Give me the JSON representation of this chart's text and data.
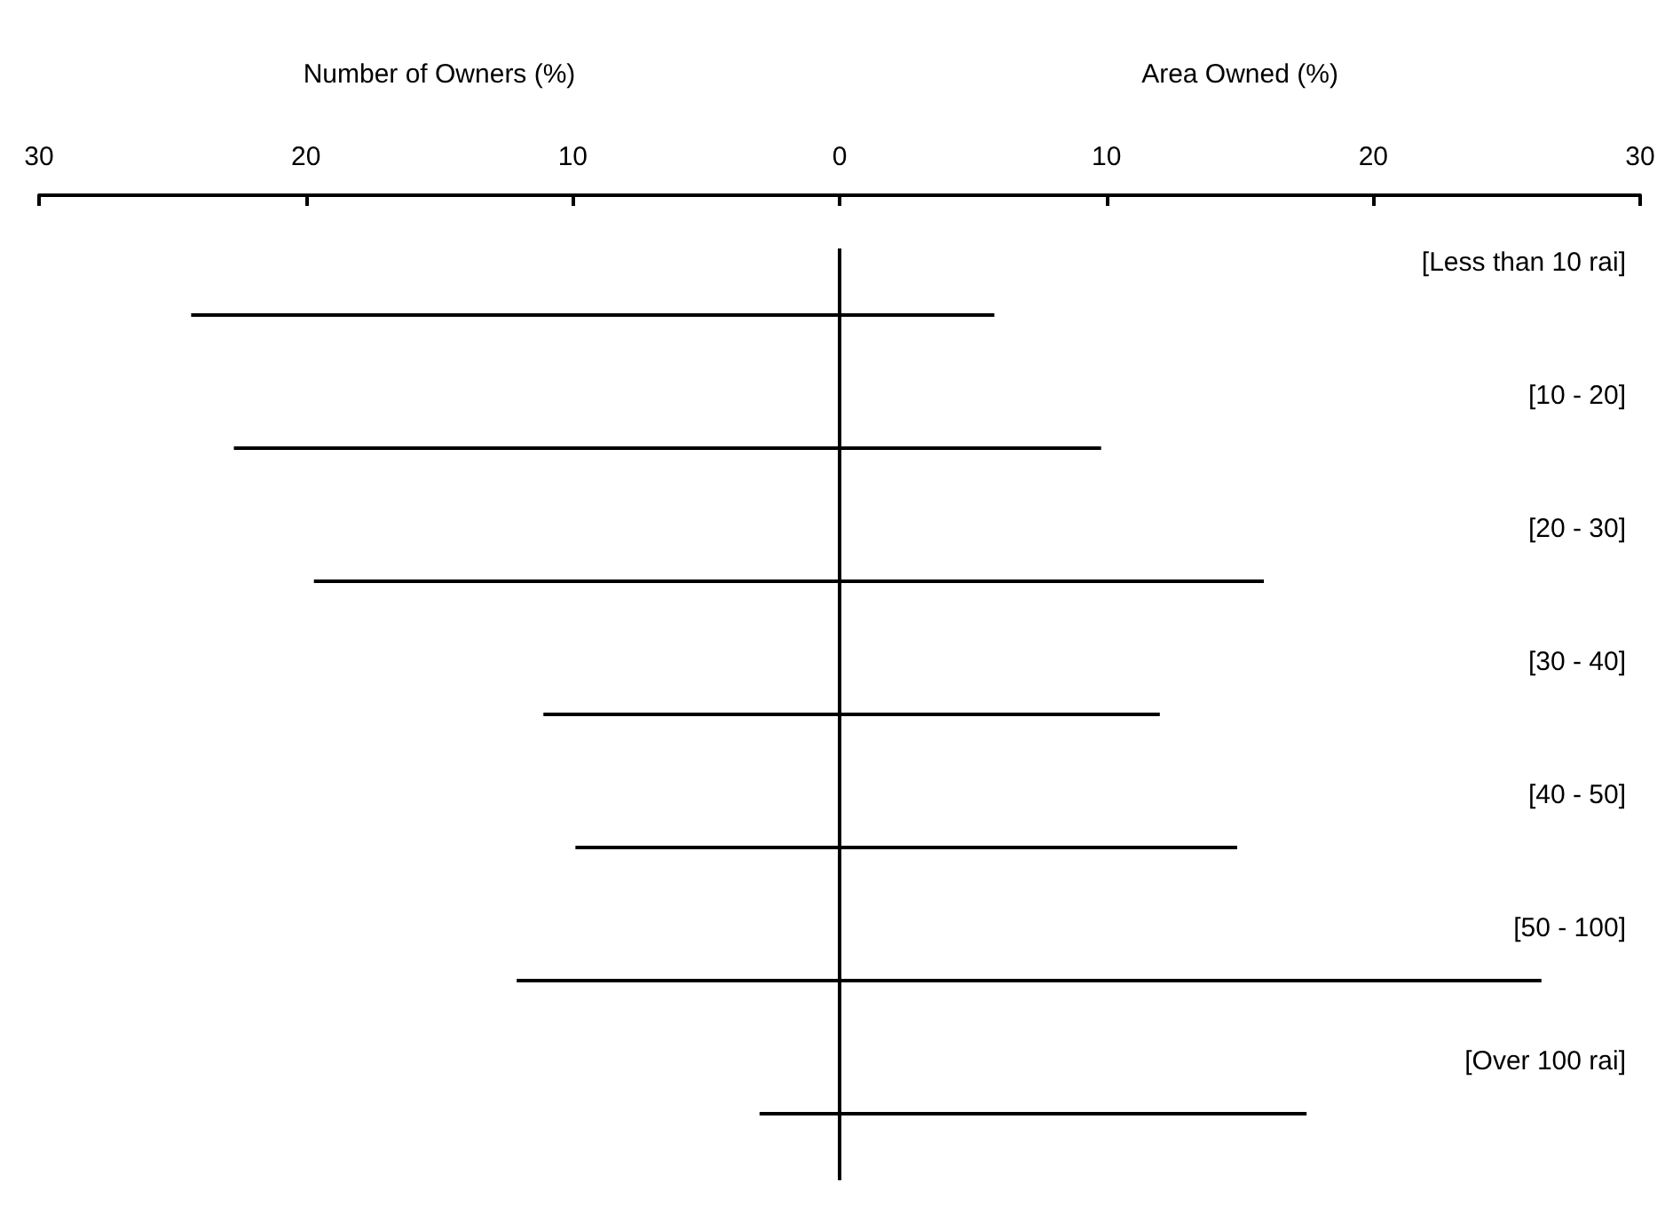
{
  "chart_data": {
    "type": "bar",
    "orientation": "horizontal",
    "stacked": true,
    "categories": [
      "[Less than 10 rai]",
      "[10 - 20]",
      "[20 - 30]",
      "[30 - 40]",
      "[40 - 50]",
      "[50 - 100]",
      "[Over 100 rai]"
    ],
    "series": [
      {
        "color": "#000000",
        "values": [
          -24.3,
          -22.7,
          -19.7,
          -11.1,
          -9.9,
          -12.1,
          -3.0
        ]
      },
      {
        "color": "#000000",
        "values": [
          5.8,
          9.8,
          15.9,
          12.0,
          14.9,
          26.3,
          17.5
        ]
      }
    ],
    "xlim": [
      -30,
      30
    ],
    "xticks": [
      {
        "value": -30,
        "label": "30"
      },
      {
        "value": -20,
        "label": "20"
      },
      {
        "value": -10,
        "label": "10"
      },
      0,
      10,
      20,
      30
    ],
    "ref_lines": [
      {
        "axis": "x",
        "value": 0,
        "color": "#000000"
      }
    ],
    "annotations": [
      "Number of Owners (%)",
      "Area Owned (%)"
    ],
    "grid": false
  }
}
